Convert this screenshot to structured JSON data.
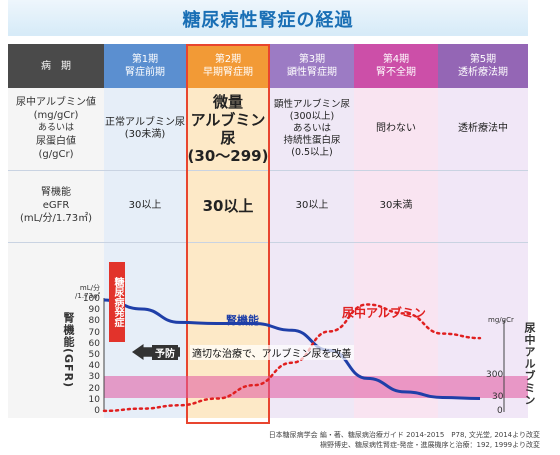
{
  "title": "糖尿病性腎症の経過",
  "row_labels": {
    "stage": "病　期",
    "albumin": [
      "尿中アルブミン値",
      "(mg/gCr)",
      "あるいは",
      "尿蛋白値",
      "(g/gCr)"
    ],
    "gfr": [
      "腎機能",
      "eGFR",
      "(mL/分/1.73㎡)"
    ]
  },
  "stages": [
    {
      "name": "第1期",
      "label": "腎症前期",
      "albumin": [
        "正常アルブミン尿",
        "(30未満)"
      ],
      "gfr": "30以上",
      "color": "#5b8fd0"
    },
    {
      "name": "第2期",
      "label": "早期腎症期",
      "albumin": [
        "微量",
        "アルブミン尿",
        "(30〜299)"
      ],
      "gfr": "30以上",
      "color": "#f29a36"
    },
    {
      "name": "第3期",
      "label": "顕性腎症期",
      "albumin": [
        "顕性アルブミン尿",
        "(300以上)",
        "あるいは",
        "持続性蛋白尿",
        "(0.5以上)"
      ],
      "gfr": "30以上",
      "color": "#9c7bc4"
    },
    {
      "name": "第4期",
      "label": "腎不全期",
      "albumin": [
        "問わない"
      ],
      "gfr": "30未満",
      "color": "#cc4fa8"
    },
    {
      "name": "第5期",
      "label": "透析療法期",
      "albumin": [
        "透析療法中"
      ],
      "gfr": "",
      "color": "#9466b5"
    }
  ],
  "chart": {
    "left_unit": [
      "mL/分",
      "/1.73㎡"
    ],
    "left_title": "腎機能(GFR)",
    "left_ticks": [
      "100",
      "90",
      "80",
      "70",
      "60",
      "50",
      "40",
      "30",
      "20",
      "10",
      "0"
    ],
    "right_unit": "mg/gCr",
    "right_title": "尿中アルブミン",
    "right_ticks": [
      "300",
      "30",
      "0"
    ],
    "onset_label": "糖尿病発症",
    "gfr_curve_label": "腎機能",
    "albumin_curve_label": "尿中アルブミン",
    "prevention_label": "予防",
    "treatment_label": "適切な治療で、アルブミン尿を改善"
  },
  "chart_data": {
    "type": "line",
    "series": [
      {
        "name": "腎機能",
        "color": "#1f3fa8",
        "x": [
          0,
          0.5,
          1.0,
          1.5,
          2.0,
          2.5,
          3.0,
          3.5,
          4.0,
          4.5,
          5.0
        ],
        "values": [
          100,
          92,
          80,
          79,
          79,
          73,
          55,
          30,
          18,
          13,
          12
        ]
      },
      {
        "name": "尿中アルブミン",
        "color": "#e02020",
        "x": [
          0,
          0.5,
          1.0,
          1.5,
          2.0,
          2.5,
          3.0,
          3.5,
          4.0,
          4.5,
          5.0
        ],
        "values": [
          5,
          15,
          30,
          60,
          120,
          220,
          360,
          480,
          440,
          350,
          330
        ]
      }
    ],
    "ylim_left": [
      0,
      100
    ],
    "ylim_right": [
      0,
      500
    ]
  },
  "colors": {
    "band": "#e0569e",
    "stage2_border": "#e8452f",
    "dark_header": "#4a4a4a"
  },
  "footnotes": [
    "日本糖尿病学会 編・著、糖尿病治療ガイド 2014-2015　P78, 文光堂, 2014より改変",
    "槇野博史、糖尿病性腎症-発症・進展機序と治療：192, 1999より改変"
  ]
}
